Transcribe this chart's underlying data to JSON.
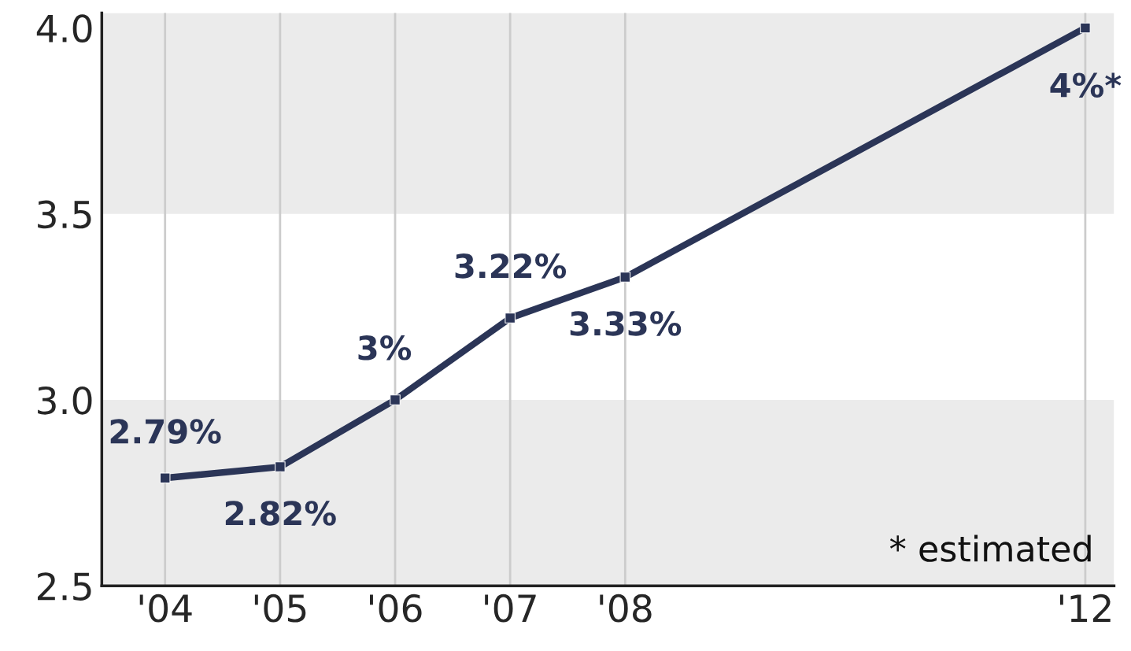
{
  "chart_data": {
    "type": "line",
    "x": [
      2004,
      2005,
      2006,
      2007,
      2008,
      2012
    ],
    "series": [
      {
        "color": "#2b3557",
        "values": [
          2.79,
          2.82,
          3.0,
          3.22,
          3.33,
          4.0
        ],
        "value_labels": [
          "2.79%",
          "2.82%",
          "3%",
          "3.22%",
          "3.33%",
          "4%*"
        ]
      }
    ],
    "xlim": [
      2003.45,
      2012.25
    ],
    "xticks": [
      {
        "value": 2004,
        "label": "'04"
      },
      {
        "value": 2005,
        "label": "'05"
      },
      {
        "value": 2006,
        "label": "'06"
      },
      {
        "value": 2007,
        "label": "'07"
      },
      {
        "value": 2008,
        "label": "'08"
      },
      {
        "value": 2012,
        "label": "'12"
      }
    ],
    "ylim": [
      2.5,
      4.04
    ],
    "yticks": [
      {
        "value": 2.5,
        "label": "2.5"
      },
      {
        "value": 3.0,
        "label": "3.0"
      },
      {
        "value": 3.5,
        "label": "3.5"
      },
      {
        "value": 4.0,
        "label": "4.0"
      }
    ],
    "bands": [
      {
        "axis": "y",
        "from": 2.5,
        "to": 3.0,
        "color": "#ebebeb"
      },
      {
        "axis": "y",
        "from": 3.5,
        "to": 4.04,
        "color": "#ebebeb"
      }
    ],
    "grid": "x",
    "marker": "square",
    "line_style": "solid",
    "annotations": [
      "* estimated"
    ]
  }
}
